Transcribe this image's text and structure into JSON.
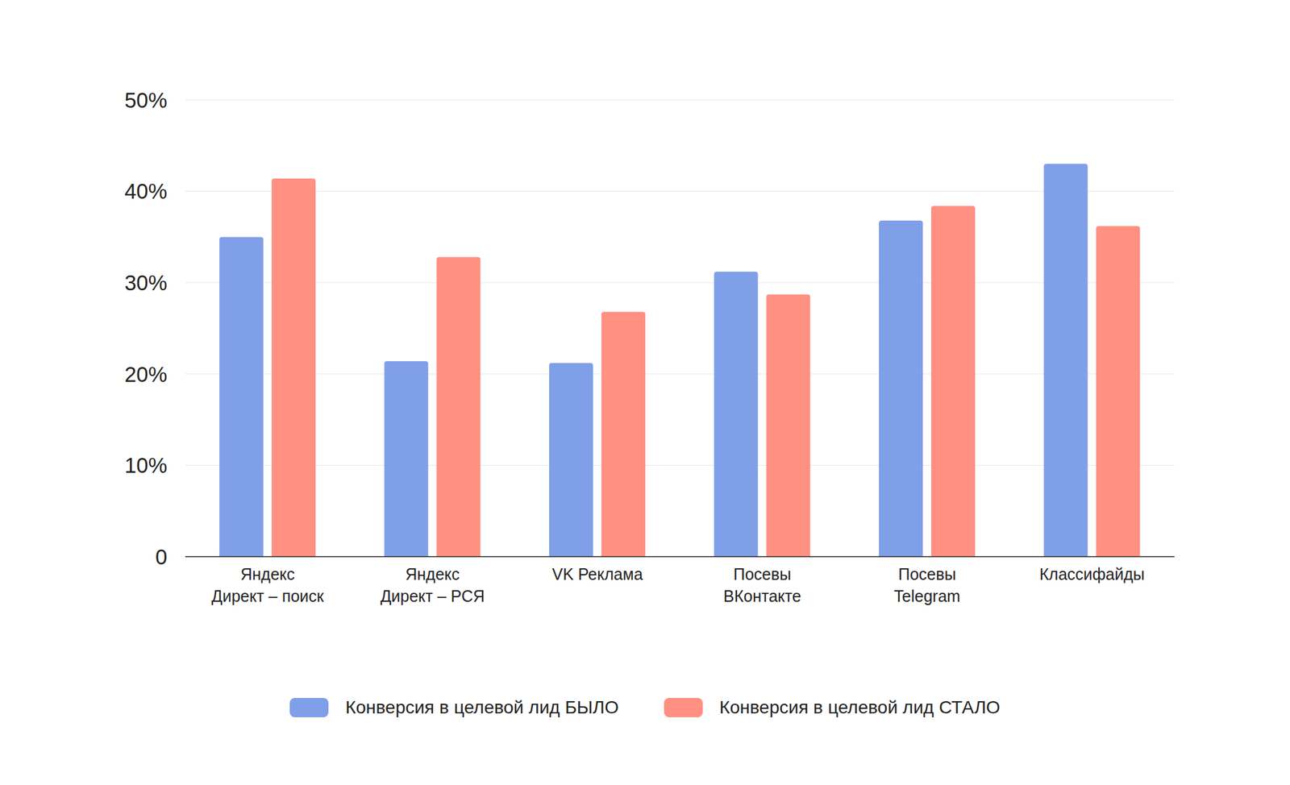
{
  "chart_data": {
    "type": "bar",
    "categories": [
      "Яндекс Директ – поиск",
      "Яндекс Директ – РСЯ",
      "VK Реклама",
      "Посевы ВКонтакте",
      "Посевы Telegram",
      "Классифайды"
    ],
    "series": [
      {
        "name": "Конверсия в целевой лид БЫЛО",
        "color": "#7f9fe8",
        "values": [
          35.0,
          21.4,
          21.2,
          31.2,
          36.8,
          43.0
        ]
      },
      {
        "name": "Конверсия в целевой лид СТАЛО",
        "color": "#ff9082",
        "values": [
          41.4,
          32.8,
          26.8,
          28.7,
          38.4,
          36.2
        ]
      }
    ],
    "ylim": [
      0,
      50
    ],
    "yticks": [
      0,
      {
        "value": 10,
        "label": "10%"
      },
      {
        "value": 20,
        "label": "20%"
      },
      {
        "value": 30,
        "label": "30%"
      },
      {
        "value": 40,
        "label": "40%"
      },
      {
        "value": 50,
        "label": "50%"
      }
    ],
    "grid": true,
    "legend": "bottom"
  }
}
